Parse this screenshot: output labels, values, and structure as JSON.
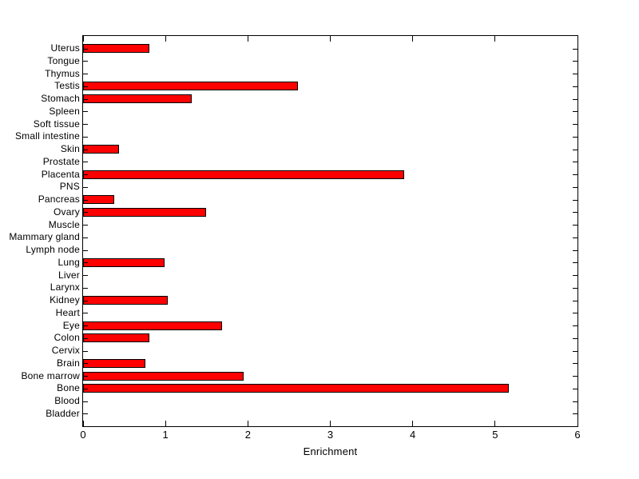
{
  "chart_data": {
    "type": "bar",
    "orientation": "horizontal",
    "row_order": "top-to-bottom",
    "title": "",
    "xlabel": "Enrichment",
    "ylabel": "",
    "xlim": [
      0,
      6
    ],
    "xticks": [
      0,
      1,
      2,
      3,
      4,
      5,
      6
    ],
    "grid": false,
    "legend": false,
    "bar_color": "#ff0000",
    "bar_edge_color": "#000000",
    "axis_color": "#000000",
    "background": "#ffffff",
    "categories": [
      "Uterus",
      "Tongue",
      "Thymus",
      "Testis",
      "Stomach",
      "Spleen",
      "Soft tissue",
      "Small intestine",
      "Skin",
      "Prostate",
      "Placenta",
      "PNS",
      "Pancreas",
      "Ovary",
      "Muscle",
      "Mammary gland",
      "Lymph node",
      "Lung",
      "Liver",
      "Larynx",
      "Kidney",
      "Heart",
      "Eye",
      "Colon",
      "Cervix",
      "Brain",
      "Bone marrow",
      "Bone",
      "Blood",
      "Bladder"
    ],
    "values": [
      0.8,
      0,
      0,
      2.61,
      1.32,
      0,
      0,
      0,
      0.44,
      0,
      3.9,
      0,
      0.38,
      1.49,
      0,
      0,
      0,
      0.99,
      0,
      0,
      1.03,
      0,
      1.69,
      0.8,
      0,
      0.76,
      1.95,
      5.17,
      0,
      0
    ]
  }
}
